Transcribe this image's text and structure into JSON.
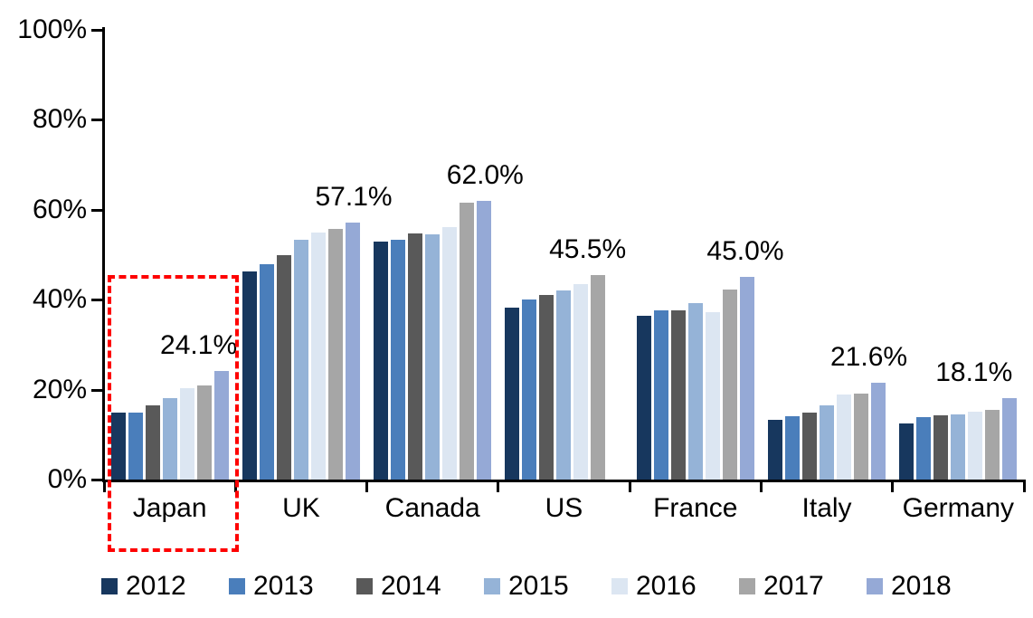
{
  "chart_data": {
    "type": "bar",
    "title": "",
    "xlabel": "",
    "ylabel": "",
    "categories": [
      "Japan",
      "UK",
      "Canada",
      "US",
      "France",
      "Italy",
      "Germany"
    ],
    "series": [
      {
        "name": "2012",
        "color": "#17375E",
        "values": [
          14.8,
          46.3,
          53.0,
          38.2,
          36.5,
          13.2,
          12.5
        ]
      },
      {
        "name": "2013",
        "color": "#4A7EBB",
        "values": [
          15.0,
          47.8,
          53.3,
          40.0,
          37.6,
          14.0,
          13.8
        ]
      },
      {
        "name": "2014",
        "color": "#595959",
        "values": [
          16.6,
          50.0,
          54.8,
          41.0,
          37.6,
          15.0,
          14.2
        ]
      },
      {
        "name": "2015",
        "color": "#95B3D7",
        "values": [
          18.2,
          53.3,
          54.5,
          42.0,
          39.2,
          16.6,
          14.5
        ]
      },
      {
        "name": "2016",
        "color": "#DCE6F2",
        "values": [
          20.3,
          54.9,
          56.1,
          43.5,
          37.2,
          19.0,
          15.2
        ]
      },
      {
        "name": "2017",
        "color": "#A6A6A6",
        "values": [
          21.0,
          55.7,
          61.6,
          45.5,
          42.3,
          19.2,
          15.6
        ]
      },
      {
        "name": "2018",
        "color": "#95A9D6",
        "values": [
          24.1,
          57.1,
          62.0,
          null,
          45.0,
          21.6,
          18.1
        ]
      }
    ],
    "data_labels": [
      "24.1%",
      "57.1%",
      "62.0%",
      "45.5%",
      "45.0%",
      "21.6%",
      "18.1%"
    ],
    "y_ticks": [
      "0%",
      "20%",
      "40%",
      "60%",
      "80%",
      "100%"
    ],
    "ylim": [
      0,
      100
    ],
    "grid": false,
    "legend_position": "bottom",
    "legend_entries": [
      "2012",
      "2013",
      "2014",
      "2015",
      "2016",
      "2017",
      "2018"
    ],
    "highlight": {
      "category": "Japan",
      "style": "dashed-rectangle",
      "color": "#FE0000"
    }
  }
}
